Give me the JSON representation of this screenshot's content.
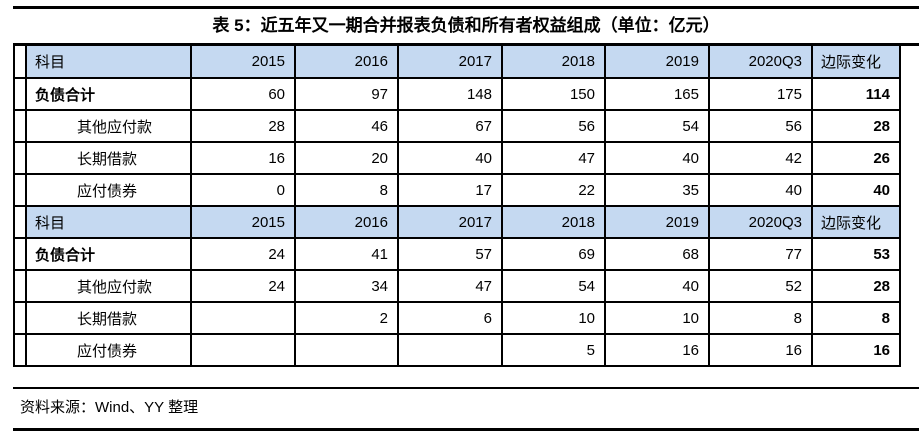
{
  "title": "表 5：近五年又一期合并报表负债和所有者权益组成（单位：亿元）",
  "source": "资料来源：Wind、YY 整理",
  "colors": {
    "header_bg": "#c5d9f1",
    "border": "#000000",
    "text": "#000000"
  },
  "table": {
    "columns": [
      "科目",
      "2015",
      "2016",
      "2017",
      "2018",
      "2019",
      "2020Q3",
      "边际变化"
    ],
    "sections": [
      {
        "rows": [
          {
            "label": "负债合计",
            "bold": true,
            "indent": false,
            "values": [
              "60",
              "97",
              "148",
              "150",
              "165",
              "175"
            ],
            "marginal": "114"
          },
          {
            "label": "其他应付款",
            "bold": false,
            "indent": true,
            "values": [
              "28",
              "46",
              "67",
              "56",
              "54",
              "56"
            ],
            "marginal": "28"
          },
          {
            "label": "长期借款",
            "bold": false,
            "indent": true,
            "values": [
              "16",
              "20",
              "40",
              "47",
              "40",
              "42"
            ],
            "marginal": "26"
          },
          {
            "label": "应付债券",
            "bold": false,
            "indent": true,
            "values": [
              "0",
              "8",
              "17",
              "22",
              "35",
              "40"
            ],
            "marginal": "40"
          }
        ]
      },
      {
        "rows": [
          {
            "label": "负债合计",
            "bold": true,
            "indent": false,
            "values": [
              "24",
              "41",
              "57",
              "69",
              "68",
              "77"
            ],
            "marginal": "53"
          },
          {
            "label": "其他应付款",
            "bold": false,
            "indent": true,
            "values": [
              "24",
              "34",
              "47",
              "54",
              "40",
              "52"
            ],
            "marginal": "28"
          },
          {
            "label": "长期借款",
            "bold": false,
            "indent": true,
            "values": [
              "",
              "2",
              "6",
              "10",
              "10",
              "8"
            ],
            "marginal": "8"
          },
          {
            "label": "应付债券",
            "bold": false,
            "indent": true,
            "values": [
              "",
              "",
              "",
              "5",
              "16",
              "16"
            ],
            "marginal": "16"
          }
        ]
      }
    ]
  }
}
